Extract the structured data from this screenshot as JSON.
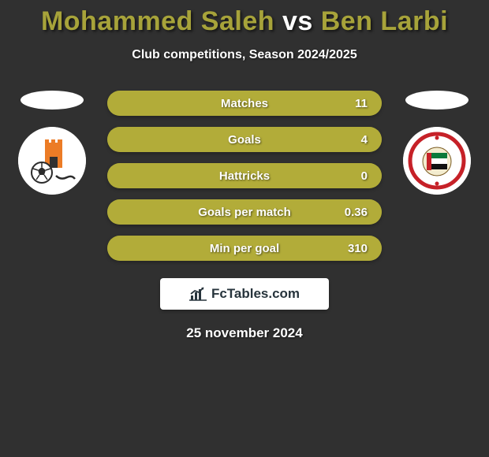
{
  "title": {
    "player1": "Mohammed Saleh",
    "vs": "vs",
    "player2": "Ben Larbi",
    "accent_color": "#a7a33a",
    "text_color": "#ffffff"
  },
  "subtitle": "Club competitions, Season 2024/2025",
  "stats": {
    "bar_bg_color": "#6f7a24",
    "bar_fill_color": "#b2ac39",
    "rows": [
      {
        "label": "Matches",
        "left": "",
        "right": "11",
        "fill_pct": 100
      },
      {
        "label": "Goals",
        "left": "",
        "right": "4",
        "fill_pct": 100
      },
      {
        "label": "Hattricks",
        "left": "",
        "right": "0",
        "fill_pct": 100
      },
      {
        "label": "Goals per match",
        "left": "",
        "right": "0.36",
        "fill_pct": 100
      },
      {
        "label": "Min per goal",
        "left": "",
        "right": "310",
        "fill_pct": 100
      }
    ]
  },
  "clubs": {
    "left": {
      "name": "ajman-club",
      "primary": "#ec7c26",
      "secondary": "#2b2b2b"
    },
    "right": {
      "name": "shabab-al-ahli",
      "primary": "#c62128",
      "secondary": "#0a7a3a"
    }
  },
  "brand": {
    "text": "FcTables.com",
    "icon_color": "#27343c"
  },
  "date": "25 november 2024",
  "colors": {
    "page_bg": "#303030",
    "white": "#ffffff"
  }
}
